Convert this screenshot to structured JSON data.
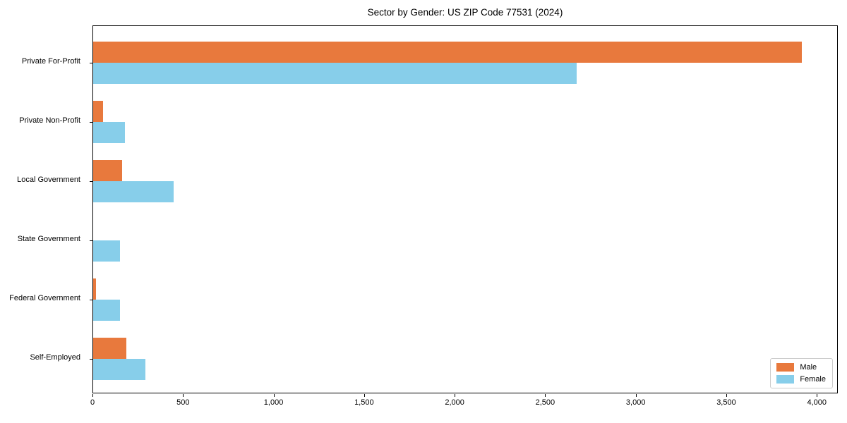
{
  "chart_data": {
    "type": "bar",
    "orientation": "horizontal",
    "title": "Sector by Gender: US ZIP Code 77531 (2024)",
    "categories": [
      "Private For-Profit",
      "Private Non-Profit",
      "Local Government",
      "State Government",
      "Federal Government",
      "Self-Employed"
    ],
    "series": [
      {
        "name": "Male",
        "color": "#e8793d",
        "values": [
          3915,
          55,
          160,
          0,
          15,
          185
        ]
      },
      {
        "name": "Female",
        "color": "#87ceea",
        "values": [
          2670,
          175,
          445,
          150,
          150,
          290
        ]
      }
    ],
    "xlabel": "",
    "ylabel": "",
    "xlim": [
      0,
      4116
    ],
    "x_ticks": [
      0,
      500,
      1000,
      1500,
      2000,
      2500,
      3000,
      3500,
      4000
    ],
    "x_tick_labels": [
      "0",
      "500",
      "1,000",
      "1,500",
      "2,000",
      "2,500",
      "3,000",
      "3,500",
      "4,000"
    ],
    "grid": false,
    "legend_position": "lower right"
  }
}
